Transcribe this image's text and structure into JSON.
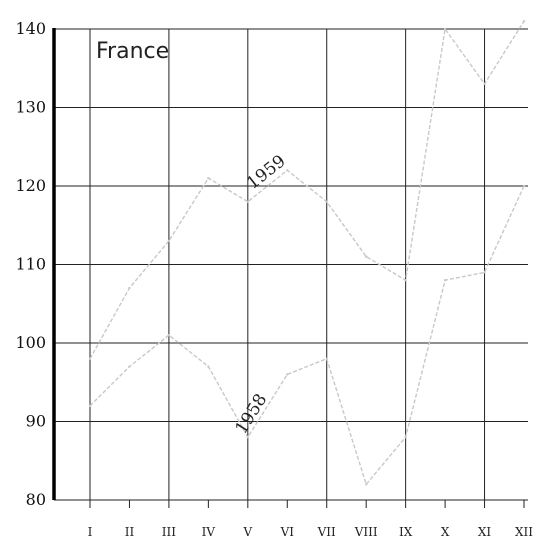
{
  "chart_data": {
    "type": "line",
    "title": "France",
    "categories": [
      "I",
      "II",
      "III",
      "IV",
      "V",
      "VI",
      "VII",
      "VIII",
      "IX",
      "X",
      "XI",
      "XII"
    ],
    "ylim": [
      80,
      140
    ],
    "yticks": [
      80,
      90,
      100,
      110,
      120,
      130,
      140
    ],
    "grid": true,
    "series": [
      {
        "name": "1959",
        "values": [
          98,
          107,
          113,
          121,
          118,
          122,
          118,
          111,
          108,
          140,
          133,
          141
        ]
      },
      {
        "name": "1958",
        "values": [
          92,
          97,
          101,
          97,
          88,
          96,
          98,
          82,
          88,
          108,
          109,
          120
        ]
      }
    ]
  }
}
